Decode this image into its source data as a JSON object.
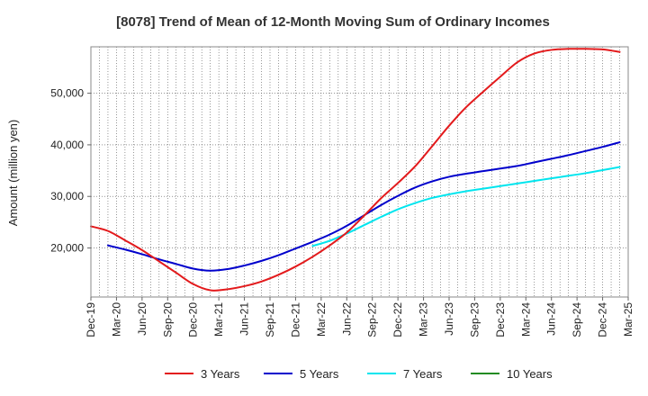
{
  "chart_data": {
    "type": "line",
    "title": "[8078]  Trend of Mean of 12-Month Moving Sum of Ordinary Incomes",
    "xlabel": "",
    "ylabel": "Amount (million yen)",
    "ylim": [
      10500,
      59000
    ],
    "yticks": [
      20000,
      30000,
      40000,
      50000
    ],
    "ytick_labels": [
      "20,000",
      "30,000",
      "40,000",
      "50,000"
    ],
    "x_start": "Dec-19",
    "x_end": "Mar-25",
    "xtick_labels": [
      "Dec-19",
      "Mar-20",
      "Jun-20",
      "Sep-20",
      "Dec-20",
      "Mar-21",
      "Jun-21",
      "Sep-21",
      "Dec-21",
      "Mar-22",
      "Jun-22",
      "Sep-22",
      "Dec-22",
      "Mar-23",
      "Jun-23",
      "Sep-23",
      "Dec-23",
      "Mar-24",
      "Jun-24",
      "Sep-24",
      "Dec-24",
      "Mar-25"
    ],
    "grid": true,
    "legend_position": "bottom",
    "series": [
      {
        "name": "3 Years",
        "color": "#e31a1c",
        "points": [
          [
            0,
            24200
          ],
          [
            1,
            23300
          ],
          [
            2,
            21500
          ],
          [
            3,
            19600
          ],
          [
            4,
            17400
          ],
          [
            5,
            15200
          ],
          [
            6,
            13000
          ],
          [
            7,
            11800
          ],
          [
            8,
            12000
          ],
          [
            9,
            12600
          ],
          [
            10,
            13500
          ],
          [
            11,
            14800
          ],
          [
            12,
            16400
          ],
          [
            13,
            18300
          ],
          [
            14,
            20500
          ],
          [
            15,
            23000
          ],
          [
            16,
            26200
          ],
          [
            17,
            29600
          ],
          [
            18,
            32600
          ],
          [
            19,
            35800
          ],
          [
            20,
            39700
          ],
          [
            21,
            43700
          ],
          [
            22,
            47300
          ],
          [
            23,
            50300
          ],
          [
            24,
            53200
          ],
          [
            25,
            56000
          ],
          [
            26,
            57700
          ],
          [
            27,
            58400
          ],
          [
            28,
            58600
          ],
          [
            29,
            58600
          ],
          [
            30,
            58500
          ],
          [
            31,
            58000
          ]
        ]
      },
      {
        "name": "5 Years",
        "color": "#0000cc",
        "points": [
          [
            1,
            20500
          ],
          [
            2,
            19700
          ],
          [
            3,
            18800
          ],
          [
            4,
            17800
          ],
          [
            5,
            16900
          ],
          [
            6,
            16000
          ],
          [
            7,
            15600
          ],
          [
            8,
            15900
          ],
          [
            9,
            16600
          ],
          [
            10,
            17500
          ],
          [
            11,
            18600
          ],
          [
            12,
            19900
          ],
          [
            13,
            21200
          ],
          [
            14,
            22600
          ],
          [
            15,
            24300
          ],
          [
            16,
            26300
          ],
          [
            17,
            28300
          ],
          [
            18,
            30100
          ],
          [
            19,
            31700
          ],
          [
            20,
            32900
          ],
          [
            21,
            33800
          ],
          [
            22,
            34400
          ],
          [
            23,
            34900
          ],
          [
            24,
            35400
          ],
          [
            25,
            35900
          ],
          [
            26,
            36600
          ],
          [
            27,
            37300
          ],
          [
            28,
            38000
          ],
          [
            29,
            38800
          ],
          [
            30,
            39600
          ],
          [
            31,
            40500
          ]
        ]
      },
      {
        "name": "7 Years",
        "color": "#00e5ee",
        "points": [
          [
            13,
            20400
          ],
          [
            14,
            21400
          ],
          [
            15,
            22800
          ],
          [
            16,
            24400
          ],
          [
            17,
            26000
          ],
          [
            18,
            27500
          ],
          [
            19,
            28700
          ],
          [
            20,
            29700
          ],
          [
            21,
            30400
          ],
          [
            22,
            31000
          ],
          [
            23,
            31500
          ],
          [
            24,
            32000
          ],
          [
            25,
            32500
          ],
          [
            26,
            33000
          ],
          [
            27,
            33500
          ],
          [
            28,
            34000
          ],
          [
            29,
            34500
          ],
          [
            30,
            35100
          ],
          [
            31,
            35700
          ]
        ]
      },
      {
        "name": "10 Years",
        "color": "#228b22",
        "points": []
      }
    ]
  }
}
